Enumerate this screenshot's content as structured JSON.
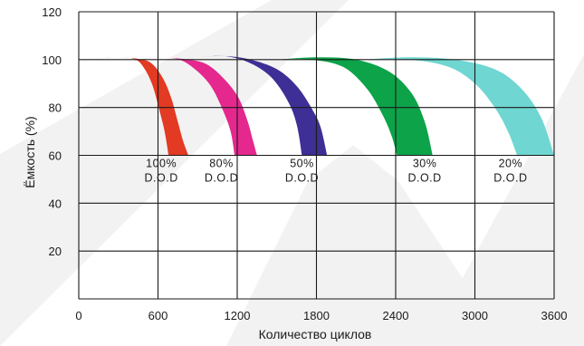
{
  "chart_data": {
    "type": "area",
    "title": "",
    "xlabel": "Количество циклов",
    "ylabel": "Ёмкость (%)",
    "xlim": [
      0,
      3600
    ],
    "ylim": [
      0,
      120
    ],
    "x_ticks": [
      "0",
      "600",
      "1200",
      "1800",
      "2400",
      "3000",
      "3600"
    ],
    "y_ticks": [
      "20",
      "40",
      "60",
      "80",
      "100",
      "120"
    ],
    "grid": true,
    "legend": "none",
    "series": [
      {
        "name": "100% D.O.D",
        "label_lines": [
          "100%",
          "D.O.D"
        ],
        "label_at": [
          625,
          55
        ],
        "color": "#e23a23",
        "upper": [
          [
            0,
            100
          ],
          [
            300,
            101
          ],
          [
            480,
            100
          ],
          [
            560,
            98
          ],
          [
            640,
            92
          ],
          [
            700,
            84
          ],
          [
            750,
            74
          ],
          [
            790,
            66
          ],
          [
            830,
            60
          ]
        ],
        "lower": [
          [
            0,
            100
          ],
          [
            300,
            101
          ],
          [
            430,
            100
          ],
          [
            500,
            96
          ],
          [
            560,
            89
          ],
          [
            610,
            79
          ],
          [
            650,
            70
          ],
          [
            680,
            60
          ]
        ]
      },
      {
        "name": "80% D.O.D",
        "label_lines": [
          "80%",
          "D.O.D"
        ],
        "label_at": [
          1080,
          55
        ],
        "color": "#e4288e",
        "upper": [
          [
            430,
            100
          ],
          [
            600,
            101
          ],
          [
            830,
            100
          ],
          [
            970,
            98
          ],
          [
            1100,
            92
          ],
          [
            1210,
            84
          ],
          [
            1280,
            74
          ],
          [
            1320,
            66
          ],
          [
            1350,
            60
          ]
        ],
        "lower": [
          [
            430,
            100
          ],
          [
            600,
            101
          ],
          [
            760,
            100
          ],
          [
            880,
            96
          ],
          [
            1000,
            89
          ],
          [
            1090,
            79
          ],
          [
            1150,
            70
          ],
          [
            1180,
            60
          ]
        ]
      },
      {
        "name": "50% D.O.D",
        "label_lines": [
          "50%",
          "D.O.D"
        ],
        "label_at": [
          1690,
          55
        ],
        "color": "#3d2f96",
        "upper": [
          [
            920,
            101
          ],
          [
            1100,
            101.5
          ],
          [
            1300,
            100
          ],
          [
            1500,
            96
          ],
          [
            1650,
            89
          ],
          [
            1760,
            80
          ],
          [
            1830,
            72
          ],
          [
            1880,
            60
          ]
        ],
        "lower": [
          [
            920,
            101
          ],
          [
            1100,
            101.5
          ],
          [
            1280,
            99
          ],
          [
            1450,
            93
          ],
          [
            1580,
            83
          ],
          [
            1650,
            73
          ],
          [
            1690,
            60
          ]
        ]
      },
      {
        "name": "30% D.O.D",
        "label_lines": [
          "30%",
          "D.O.D"
        ],
        "label_at": [
          2620,
          55
        ],
        "color": "#0ca349",
        "upper": [
          [
            1500,
            100
          ],
          [
            1800,
            101
          ],
          [
            2100,
            100
          ],
          [
            2350,
            95
          ],
          [
            2520,
            86
          ],
          [
            2620,
            74
          ],
          [
            2680,
            60
          ]
        ],
        "lower": [
          [
            1500,
            100
          ],
          [
            1750,
            100
          ],
          [
            2000,
            97
          ],
          [
            2180,
            88
          ],
          [
            2300,
            77
          ],
          [
            2370,
            68
          ],
          [
            2410,
            60
          ]
        ]
      },
      {
        "name": "20% D.O.D",
        "label_lines": [
          "20%",
          "D.O.D"
        ],
        "label_at": [
          3270,
          55
        ],
        "color": "#6fd6d2",
        "upper": [
          [
            2150,
            100
          ],
          [
            2500,
            101
          ],
          [
            2850,
            100
          ],
          [
            3150,
            96
          ],
          [
            3350,
            88
          ],
          [
            3500,
            76
          ],
          [
            3600,
            60
          ]
        ],
        "lower": [
          [
            2150,
            100
          ],
          [
            2500,
            100
          ],
          [
            2800,
            97
          ],
          [
            3000,
            90
          ],
          [
            3150,
            80
          ],
          [
            3250,
            70
          ],
          [
            3320,
            60
          ]
        ]
      }
    ]
  }
}
